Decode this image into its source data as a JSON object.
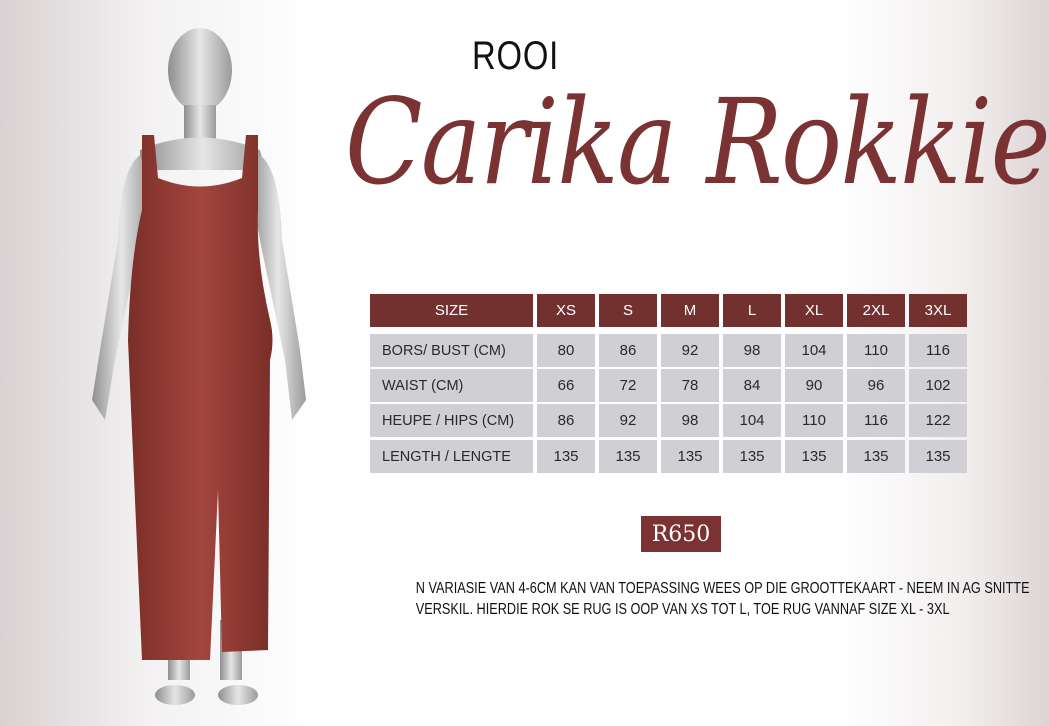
{
  "header": {
    "color_word": "ROOI",
    "product_name": "Carika Rokkie"
  },
  "colors": {
    "brand": "#7b3233",
    "header_cell": "#72302e",
    "body_cell": "#cfcfd4"
  },
  "size_chart": {
    "columns": [
      "SIZE",
      "XS",
      "S",
      "M",
      "L",
      "XL",
      "2XL",
      "3XL"
    ],
    "rows": [
      {
        "label": "BORS/ BUST (CM)",
        "values": [
          "80",
          "86",
          "92",
          "98",
          "104",
          "110",
          "116"
        ]
      },
      {
        "label": "WAIST (CM)",
        "values": [
          "66",
          "72",
          "78",
          "84",
          "90",
          "96",
          "102"
        ]
      },
      {
        "label": "HEUPE / HIPS (CM)",
        "values": [
          "86",
          "92",
          "98",
          "104",
          "110",
          "116",
          "122"
        ]
      },
      {
        "label": "LENGTH / LENGTE",
        "values": [
          "135",
          "135",
          "135",
          "135",
          "135",
          "135",
          "135"
        ]
      }
    ]
  },
  "price": "R650",
  "note": {
    "line1": "N VARIASIE VAN 4-6CM KAN VAN TOEPASSING WEES OP DIE GROOTTEKAART - NEEM IN AG SNITTE",
    "line2": "VERSKIL. HIERDIE ROK SE RUG IS OOP VAN XS TOT L, TOE RUG VANNAF SIZE XL - 3XL"
  }
}
